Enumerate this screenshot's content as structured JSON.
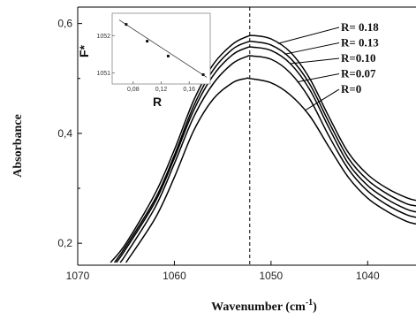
{
  "chart_data": [
    {
      "type": "line",
      "title": "",
      "xlabel": "Wavenumber (cm",
      "xlabel_sup": "-1",
      "xlabel_close": ")",
      "ylabel": "Absorbance",
      "xlim": [
        1070,
        1035
      ],
      "ylim": [
        0.16,
        0.63
      ],
      "x_reversed": true,
      "xticks": [
        1070,
        1060,
        1050,
        1040
      ],
      "yticks": [
        0.2,
        0.4,
        0.6
      ],
      "ytick_labels": [
        "0,2",
        "0,4",
        "0,6"
      ],
      "reference_line_x": 1052.2,
      "series": [
        {
          "name": "R= 0.18",
          "x": [
            1066.6,
            1065,
            1062,
            1060,
            1058,
            1056,
            1054,
            1052.5,
            1051.7,
            1050,
            1048,
            1046,
            1044,
            1042,
            1040,
            1038,
            1036,
            1035
          ],
          "y": [
            0.165,
            0.2,
            0.29,
            0.37,
            0.46,
            0.525,
            0.562,
            0.576,
            0.578,
            0.572,
            0.548,
            0.5,
            0.43,
            0.365,
            0.325,
            0.3,
            0.283,
            0.278
          ]
        },
        {
          "name": "R= 0.13",
          "x": [
            1066.2,
            1065,
            1062,
            1060,
            1058,
            1056,
            1054,
            1052.5,
            1051.8,
            1050,
            1048,
            1046,
            1044,
            1042,
            1040,
            1038,
            1036,
            1035
          ],
          "y": [
            0.165,
            0.195,
            0.28,
            0.36,
            0.45,
            0.515,
            0.553,
            0.566,
            0.567,
            0.561,
            0.537,
            0.49,
            0.42,
            0.355,
            0.315,
            0.29,
            0.272,
            0.268
          ]
        },
        {
          "name": "R=0.10",
          "x": [
            1066.0,
            1065,
            1062,
            1060,
            1058,
            1056,
            1054,
            1052.5,
            1051.9,
            1050,
            1048,
            1046,
            1044,
            1042,
            1040,
            1038,
            1036,
            1035
          ],
          "y": [
            0.165,
            0.19,
            0.275,
            0.355,
            0.442,
            0.505,
            0.543,
            0.556,
            0.557,
            0.551,
            0.527,
            0.48,
            0.41,
            0.345,
            0.305,
            0.28,
            0.262,
            0.257
          ]
        },
        {
          "name": "R=0.07",
          "x": [
            1065.6,
            1065,
            1062,
            1060,
            1058,
            1056,
            1054,
            1052.5,
            1052.0,
            1050,
            1048,
            1046,
            1044,
            1042,
            1040,
            1038,
            1036,
            1035
          ],
          "y": [
            0.165,
            0.18,
            0.265,
            0.345,
            0.43,
            0.49,
            0.527,
            0.54,
            0.541,
            0.535,
            0.51,
            0.463,
            0.395,
            0.335,
            0.295,
            0.27,
            0.252,
            0.247
          ]
        },
        {
          "name": "R=0",
          "x": [
            1065.0,
            1062,
            1060,
            1058,
            1056,
            1054,
            1052.6,
            1052.2,
            1050,
            1048,
            1046,
            1044,
            1042,
            1040,
            1038,
            1036,
            1035
          ],
          "y": [
            0.165,
            0.245,
            0.32,
            0.405,
            0.462,
            0.492,
            0.5,
            0.5,
            0.492,
            0.47,
            0.432,
            0.375,
            0.32,
            0.282,
            0.258,
            0.24,
            0.235
          ]
        }
      ]
    },
    {
      "type": "scatter",
      "title": "",
      "xlabel": "R",
      "ylabel": "F*",
      "xlim": [
        0.05,
        0.19
      ],
      "ylim": [
        1050.7,
        1052.6
      ],
      "xticks": [
        0.08,
        0.12,
        0.16
      ],
      "xtick_labels": [
        "0,08",
        "0,12",
        "0,16"
      ],
      "yticks": [
        1051,
        1052
      ],
      "x": [
        0.07,
        0.1,
        0.13,
        0.18
      ],
      "y": [
        1052.3,
        1051.85,
        1051.45,
        1050.95
      ],
      "fit_line": [
        [
          0.06,
          1052.42
        ],
        [
          0.185,
          1050.88
        ]
      ]
    }
  ]
}
